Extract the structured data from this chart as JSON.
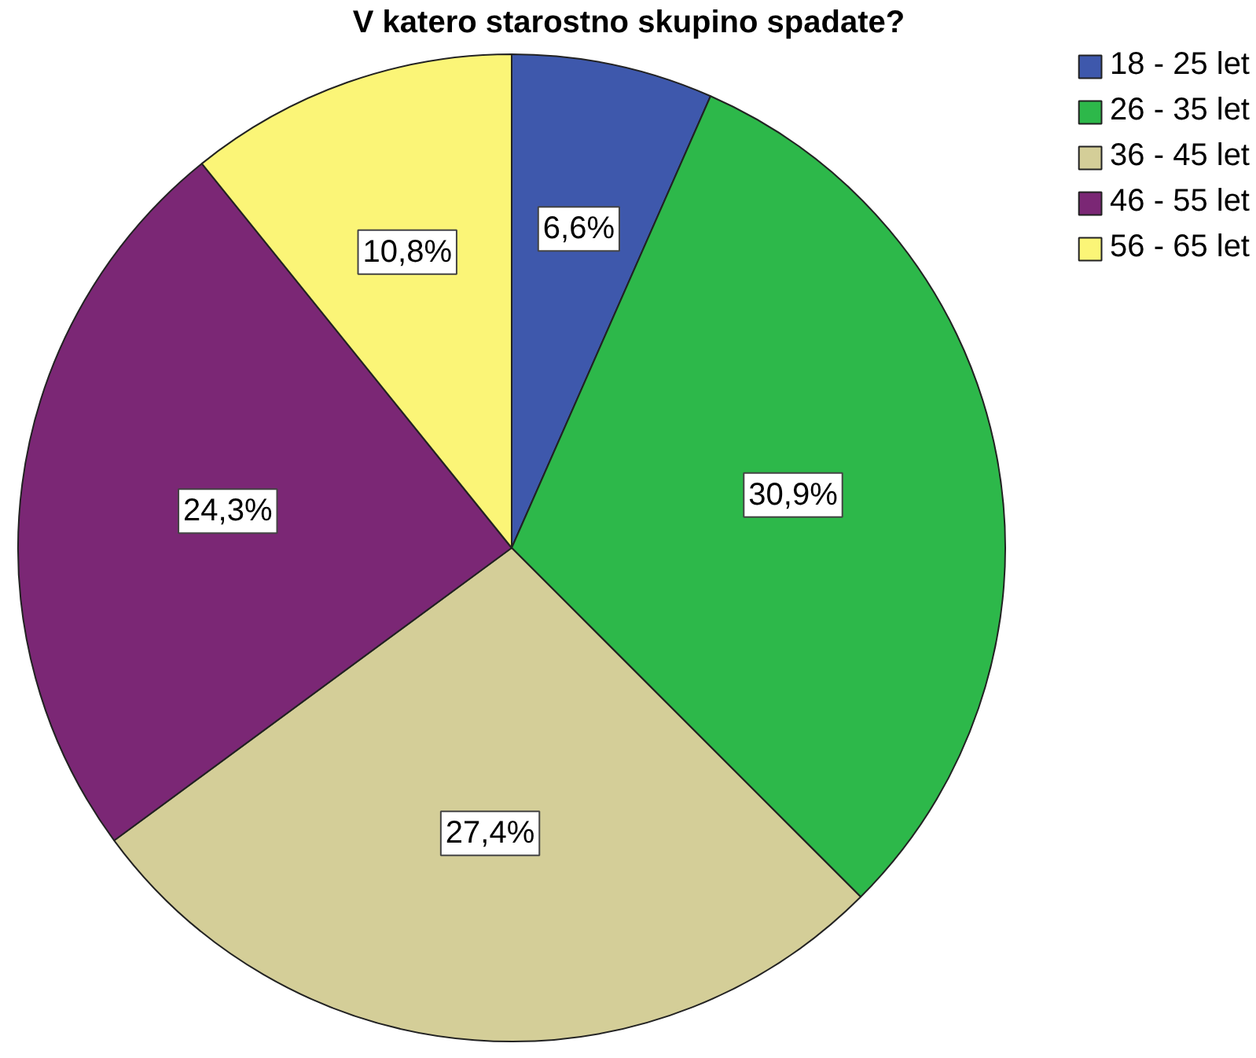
{
  "chart_data": {
    "type": "pie",
    "title": "V katero starostno skupino spadate?",
    "categories": [
      "18 - 25 let",
      "26 - 35 let",
      "36 - 45 let",
      "46 - 55 let",
      "56 - 65 let"
    ],
    "values": [
      6.6,
      30.9,
      27.4,
      24.3,
      10.8
    ],
    "colors": [
      "#3e58ac",
      "#2db84a",
      "#d4ce98",
      "#7b2775",
      "#fbf577"
    ],
    "value_labels": [
      "6,6%",
      "30,9%",
      "27,4%",
      "24,3%",
      "10,8%"
    ],
    "legend": "top right"
  }
}
